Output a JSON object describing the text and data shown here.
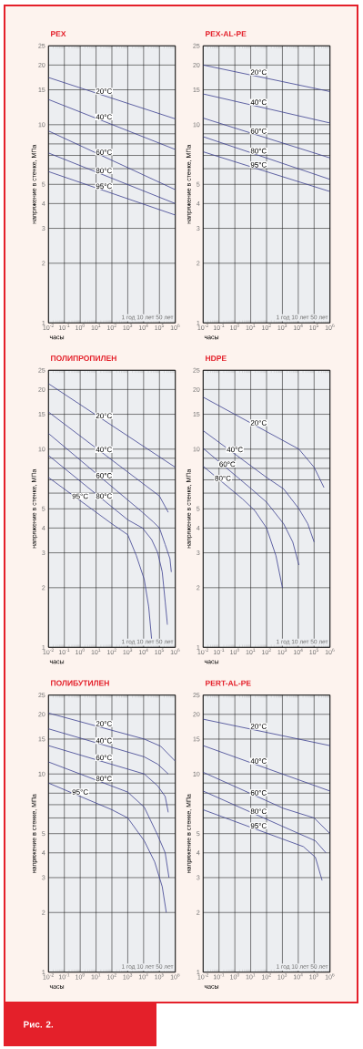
{
  "chart_data": [
    {
      "type": "line",
      "title": "PEX",
      "xlabel": "часы",
      "ylabel": "напряжение в стенке, МПа",
      "log": "xy",
      "grid": true,
      "xlim": [
        0.01,
        1000000
      ],
      "ylim": [
        1,
        25
      ],
      "xticks": [
        {
          "value": 0.01,
          "label": "10$^{-2}$"
        },
        {
          "value": 0.1,
          "label": "10$^{-1}$"
        },
        {
          "value": 1,
          "label": "10$^{0}$"
        },
        {
          "value": 10,
          "label": "10$^{1}$"
        },
        {
          "value": 100,
          "label": "10$^{2}$"
        },
        {
          "value": 1000,
          "label": "10$^{3}$"
        },
        {
          "value": 10000,
          "label": "10$^{4}$"
        },
        {
          "value": 100000,
          "label": "10$^{5}$"
        },
        {
          "value": 1000000,
          "label": "10$^{6}$"
        }
      ],
      "yticks": [
        1,
        2,
        3,
        4,
        5,
        {
          "value": 6,
          "label": null
        },
        {
          "value": 7,
          "label": null
        },
        {
          "value": 8,
          "label": null
        },
        {
          "value": 9,
          "label": null
        },
        10,
        15,
        20,
        25
      ],
      "series": [
        {
          "name": "20°C",
          "color": "#3b3f8f",
          "x": [
            0.01,
            1000000
          ],
          "values": [
            17.3,
            10.7
          ]
        },
        {
          "name": "40°C",
          "color": "#3b3f8f",
          "x": [
            0.01,
            1000000
          ],
          "values": [
            13.4,
            7.5
          ]
        },
        {
          "name": "60°C",
          "color": "#3b3f8f",
          "x": [
            0.01,
            1000000
          ],
          "values": [
            9.3,
            4.7
          ]
        },
        {
          "name": "80°C",
          "color": "#3b3f8f",
          "x": [
            0.01,
            1000000
          ],
          "values": [
            7.2,
            4.0
          ]
        },
        {
          "name": "95°C",
          "color": "#3b3f8f",
          "x": [
            0.01,
            1000000
          ],
          "values": [
            5.8,
            3.5
          ]
        }
      ],
      "annotations": [
        "1 год",
        "10 лет",
        "50 лет"
      ]
    },
    {
      "type": "line",
      "title": "PEX-AL-PE",
      "xlabel": "часы",
      "ylabel": "напряжение в стенке, МПа",
      "log": "xy",
      "grid": true,
      "xlim": [
        0.01,
        1000000
      ],
      "ylim": [
        1,
        25
      ],
      "xticks": [
        {
          "value": 0.01,
          "label": "10$^{-2}$"
        },
        {
          "value": 0.1,
          "label": "10$^{-1}$"
        },
        {
          "value": 1,
          "label": "10$^{0}$"
        },
        {
          "value": 10,
          "label": "10$^{1}$"
        },
        {
          "value": 100,
          "label": "10$^{2}$"
        },
        {
          "value": 1000,
          "label": "10$^{3}$"
        },
        {
          "value": 10000,
          "label": "10$^{4}$"
        },
        {
          "value": 100000,
          "label": "10$^{5}$"
        },
        {
          "value": 1000000,
          "label": "10$^{6}$"
        }
      ],
      "yticks": [
        1,
        2,
        3,
        4,
        5,
        {
          "value": 6,
          "label": null
        },
        {
          "value": 7,
          "label": null
        },
        {
          "value": 8,
          "label": null
        },
        {
          "value": 9,
          "label": null
        },
        10,
        15,
        20,
        25
      ],
      "series": [
        {
          "name": "20°C",
          "color": "#3b3f8f",
          "x": [
            0.01,
            1000000
          ],
          "values": [
            20.0,
            14.7
          ]
        },
        {
          "name": "40°C",
          "color": "#3b3f8f",
          "x": [
            0.01,
            1000000
          ],
          "values": [
            14.3,
            10.2
          ]
        },
        {
          "name": "60°C",
          "color": "#3b3f8f",
          "x": [
            0.01,
            1000000
          ],
          "values": [
            10.8,
            6.8
          ]
        },
        {
          "name": "80°C",
          "color": "#3b3f8f",
          "x": [
            0.01,
            1000000
          ],
          "values": [
            8.7,
            5.3
          ]
        },
        {
          "name": "95°C",
          "color": "#3b3f8f",
          "x": [
            0.01,
            1000000
          ],
          "values": [
            7.3,
            4.6
          ]
        }
      ],
      "annotations": [
        "1 год",
        "10 лет",
        "50 лет"
      ]
    },
    {
      "type": "line",
      "title": "ПОЛИПРОПИЛЕН",
      "xlabel": "часы",
      "ylabel": "напряжение в стенке, МПа",
      "log": "xy",
      "grid": true,
      "xlim": [
        0.01,
        1000000
      ],
      "ylim": [
        1,
        25
      ],
      "xticks": [
        {
          "value": 0.01,
          "label": "10$^{-2}$"
        },
        {
          "value": 0.1,
          "label": "10$^{-1}$"
        },
        {
          "value": 1,
          "label": "10$^{0}$"
        },
        {
          "value": 10,
          "label": "10$^{1}$"
        },
        {
          "value": 100,
          "label": "10$^{2}$"
        },
        {
          "value": 1000,
          "label": "10$^{3}$"
        },
        {
          "value": 10000,
          "label": "10$^{4}$"
        },
        {
          "value": 100000,
          "label": "10$^{5}$"
        },
        {
          "value": 1000000,
          "label": "10$^{6}$"
        }
      ],
      "yticks": [
        1,
        2,
        3,
        4,
        5,
        {
          "value": 6,
          "label": null
        },
        {
          "value": 7,
          "label": null
        },
        {
          "value": 8,
          "label": null
        },
        {
          "value": 9,
          "label": null
        },
        10,
        15,
        20,
        25
      ],
      "series": [
        {
          "name": "20°C",
          "color": "#3b3f8f",
          "x": [
            0.01,
            1000000
          ],
          "values": [
            21.4,
            8.1
          ]
        },
        {
          "name": "40°C",
          "color": "#3b3f8f",
          "x": [
            0.01,
            100000,
            360000
          ],
          "values": [
            15.4,
            5.8,
            4.8
          ]
        },
        {
          "name": "60°C",
          "color": "#3b3f8f",
          "x": [
            0.01,
            8500,
            40000,
            100000,
            230000,
            460000,
            560000
          ],
          "values": [
            12.0,
            4.8,
            4.3,
            4.0,
            3.3,
            2.8,
            2.4
          ]
        },
        {
          "name": "80°C",
          "color": "#3b3f8f",
          "x": [
            0.01,
            1000,
            8500,
            32000,
            78000,
            150000,
            230000,
            320000
          ],
          "values": [
            9.3,
            4.4,
            4.0,
            3.5,
            3.0,
            2.4,
            1.7,
            1.3
          ]
        },
        {
          "name": "95°C",
          "color": "#3b3f8f",
          "x": [
            0.01,
            100,
            1000,
            3500,
            11000,
            21000,
            32000
          ],
          "values": [
            7.2,
            4.2,
            3.7,
            2.9,
            2.2,
            1.6,
            1.1
          ]
        }
      ],
      "annotations": [
        "1 год",
        "10 лет",
        "50 лет"
      ]
    },
    {
      "type": "line",
      "title": "HDPE",
      "xlabel": "часы",
      "ylabel": "напряжение в стенке, МПа",
      "log": "xy",
      "grid": true,
      "xlim": [
        0.01,
        1000000
      ],
      "ylim": [
        1,
        25
      ],
      "xticks": [
        {
          "value": 0.01,
          "label": "10$^{-2}$"
        },
        {
          "value": 0.1,
          "label": "10$^{-1}$"
        },
        {
          "value": 1,
          "label": "10$^{0}$"
        },
        {
          "value": 10,
          "label": "10$^{1}$"
        },
        {
          "value": 100,
          "label": "10$^{2}$"
        },
        {
          "value": 1000,
          "label": "10$^{3}$"
        },
        {
          "value": 10000,
          "label": "10$^{4}$"
        },
        {
          "value": 100000,
          "label": "10$^{5}$"
        },
        {
          "value": 1000000,
          "label": "10$^{6}$"
        }
      ],
      "yticks": [
        1,
        2,
        3,
        4,
        5,
        {
          "value": 6,
          "label": null
        },
        {
          "value": 7,
          "label": null
        },
        {
          "value": 8,
          "label": null
        },
        {
          "value": 9,
          "label": null
        },
        10,
        15,
        20,
        25
      ],
      "series": [
        {
          "name": "20°C",
          "color": "#3b3f8f",
          "x": [
            0.01,
            11000,
            100000,
            420000
          ],
          "values": [
            18.3,
            10.0,
            8.1,
            6.4
          ]
        },
        {
          "name": "40°C",
          "color": "#3b3f8f",
          "x": [
            0.01,
            100,
            1200,
            11000,
            40000,
            100000
          ],
          "values": [
            12.4,
            7.2,
            6.3,
            5.0,
            4.2,
            3.4
          ]
        },
        {
          "name": "60°C",
          "color": "#3b3f8f",
          "x": [
            0.01,
            11,
            100,
            1200,
            4500,
            11000
          ],
          "values": [
            10.1,
            6.3,
            5.4,
            4.2,
            3.4,
            2.6
          ]
        },
        {
          "name": "80°C",
          "color": "#3b3f8f",
          "x": [
            0.01,
            3.1,
            18,
            100,
            390,
            1000
          ],
          "values": [
            8.2,
            5.6,
            4.9,
            4.0,
            2.9,
            2.0
          ]
        }
      ],
      "annotations": [
        "1 год",
        "10 лет",
        "50 лет"
      ]
    },
    {
      "type": "line",
      "title": "ПОЛИБУТИЛЕН",
      "xlabel": "часы",
      "ylabel": "напряжение в стенке, МПа",
      "log": "xy",
      "grid": true,
      "xlim": [
        0.01,
        1000000
      ],
      "ylim": [
        1,
        25
      ],
      "xticks": [
        {
          "value": 0.01,
          "label": "10$^{-2}$"
        },
        {
          "value": 0.1,
          "label": "10$^{-1}$"
        },
        {
          "value": 1,
          "label": "10$^{0}$"
        },
        {
          "value": 10,
          "label": "10$^{1}$"
        },
        {
          "value": 100,
          "label": "10$^{2}$"
        },
        {
          "value": 1000,
          "label": "10$^{3}$"
        },
        {
          "value": 10000,
          "label": "10$^{4}$"
        },
        {
          "value": 100000,
          "label": "10$^{5}$"
        },
        {
          "value": 1000000,
          "label": "10$^{6}$"
        }
      ],
      "yticks": [
        1,
        2,
        3,
        4,
        5,
        {
          "value": 6,
          "label": null
        },
        {
          "value": 7,
          "label": null
        },
        {
          "value": 8,
          "label": null
        },
        {
          "value": 9,
          "label": null
        },
        10,
        15,
        20,
        25
      ],
      "series": [
        {
          "name": "20°C",
          "color": "#3b3f8f",
          "x": [
            0.01,
            11000,
            120000,
            1000000
          ],
          "values": [
            20.3,
            15.0,
            13.8,
            11.6
          ]
        },
        {
          "name": "40°C",
          "color": "#3b3f8f",
          "x": [
            0.01,
            11000,
            78000,
            360000
          ],
          "values": [
            16.9,
            12.2,
            11.2,
            10.0
          ]
        },
        {
          "name": "60°C",
          "color": "#3b3f8f",
          "x": [
            0.01,
            11000,
            78000,
            230000,
            360000
          ],
          "values": [
            13.9,
            10.0,
            8.7,
            7.7,
            6.4
          ]
        },
        {
          "name": "80°C",
          "color": "#3b3f8f",
          "x": [
            0.01,
            1000,
            11000,
            78000,
            230000,
            400000
          ],
          "values": [
            11.5,
            8.1,
            6.8,
            4.9,
            4.0,
            3.0
          ]
        },
        {
          "name": "95°C",
          "color": "#3b3f8f",
          "x": [
            0.01,
            100,
            1000,
            11000,
            50000,
            150000,
            270000
          ],
          "values": [
            9.0,
            6.6,
            6.0,
            4.6,
            3.6,
            2.7,
            2.0
          ]
        }
      ],
      "annotations": [
        "1 год",
        "10 лет",
        "50 лет"
      ]
    },
    {
      "type": "line",
      "title": "PERT-AL-PE",
      "xlabel": "часы",
      "ylabel": "напряжение в стенке, МПа",
      "log": "xy",
      "grid": true,
      "xlim": [
        0.01,
        1000000
      ],
      "ylim": [
        1,
        25
      ],
      "xticks": [
        {
          "value": 0.01,
          "label": "10$^{-2}$"
        },
        {
          "value": 0.1,
          "label": "10$^{-1}$"
        },
        {
          "value": 1,
          "label": "10$^{0}$"
        },
        {
          "value": 10,
          "label": "10$^{1}$"
        },
        {
          "value": 100,
          "label": "10$^{2}$"
        },
        {
          "value": 1000,
          "label": "10$^{3}$"
        },
        {
          "value": 10000,
          "label": "10$^{4}$"
        },
        {
          "value": 100000,
          "label": "10$^{5}$"
        },
        {
          "value": 1000000,
          "label": "10$^{6}$"
        }
      ],
      "yticks": [
        1,
        2,
        3,
        4,
        5,
        {
          "value": 6,
          "label": null
        },
        {
          "value": 7,
          "label": null
        },
        {
          "value": 8,
          "label": null
        },
        {
          "value": 9,
          "label": null
        },
        10,
        15,
        20,
        25
      ],
      "series": [
        {
          "name": "20°C",
          "color": "#3b3f8f",
          "x": [
            0.01,
            1000000
          ],
          "values": [
            18.9,
            13.9
          ]
        },
        {
          "name": "40°C",
          "color": "#3b3f8f",
          "x": [
            0.01,
            1000000
          ],
          "values": [
            13.9,
            8.2
          ]
        },
        {
          "name": "60°C",
          "color": "#3b3f8f",
          "x": [
            0.01,
            1200,
            100000,
            1000000
          ],
          "values": [
            10.2,
            6.7,
            6.0,
            5.0
          ]
        },
        {
          "name": "80°C",
          "color": "#3b3f8f",
          "x": [
            0.01,
            11000,
            120000,
            560000
          ],
          "values": [
            8.2,
            5.0,
            4.6,
            4.0
          ]
        },
        {
          "name": "95°C",
          "color": "#3b3f8f",
          "x": [
            0.01,
            1000,
            21000,
            120000,
            320000
          ],
          "values": [
            6.6,
            4.7,
            4.3,
            3.8,
            2.9
          ]
        }
      ],
      "annotations": [
        "1 год",
        "10 лет",
        "50 лет",
        "Рис. 2."
      ]
    }
  ]
}
